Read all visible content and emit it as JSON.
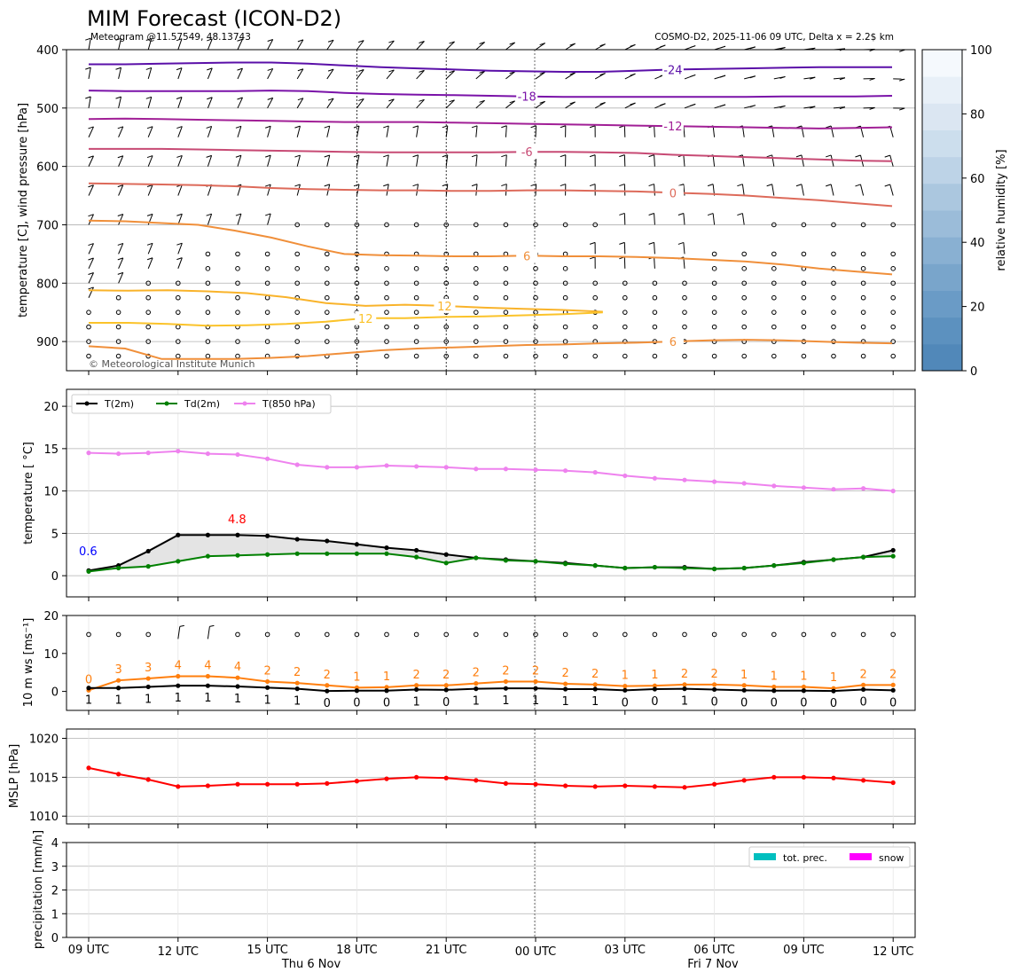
{
  "header": {
    "title": "MIM Forecast (ICON-D2)",
    "subtitle_left": "Meteogram @11.57549, 48.13743",
    "subtitle_right": "COSMO-D2, 2025-11-06 09 UTC, Delta x = 2.2$ km",
    "copyright": "© Meteorological Institute Munich"
  },
  "time_axis": {
    "tick_labels": [
      "09 UTC",
      "12 UTC",
      "15 UTC",
      "18 UTC",
      "21 UTC",
      "00 UTC",
      "03 UTC",
      "06 UTC",
      "09 UTC",
      "12 UTC"
    ],
    "day_labels": [
      "Thu 6 Nov",
      "Fri 7 Nov"
    ]
  },
  "chart_data": [
    {
      "type": "contour",
      "id": "upper_air",
      "ylabel": "temperature [C], wind pressure [hPa]",
      "ylim": [
        950,
        400
      ],
      "yticks": [
        400,
        500,
        600,
        700,
        800,
        900
      ],
      "grid": true,
      "temperature_isotherms": [
        {
          "label": "-24",
          "color": "#5a0fa8",
          "pressure": [
            425,
            425,
            424,
            423,
            422,
            422,
            424,
            427,
            430,
            432,
            434,
            436,
            437,
            438,
            438,
            436,
            434,
            433,
            432,
            431,
            430,
            430,
            430
          ]
        },
        {
          "label": "-18",
          "color": "#7a12a8",
          "pressure": [
            470,
            471,
            471,
            471,
            471,
            470,
            471,
            474,
            476,
            477,
            478,
            479,
            480,
            481,
            481,
            481,
            481,
            481,
            481,
            480,
            480,
            480,
            479
          ]
        },
        {
          "label": "-12",
          "color": "#a11f96",
          "pressure": [
            519,
            518,
            519,
            520,
            521,
            522,
            523,
            524,
            524,
            524,
            525,
            526,
            527,
            528,
            529,
            530,
            531,
            532,
            533,
            534,
            535,
            534,
            533
          ]
        },
        {
          "label": "-6",
          "color": "#c74a74",
          "pressure": [
            570,
            570,
            570,
            571,
            572,
            573,
            574,
            575,
            576,
            576,
            576,
            576,
            575,
            575,
            576,
            577,
            580,
            582,
            584,
            586,
            588,
            590,
            591
          ]
        },
        {
          "label": "0",
          "color": "#dd6a5a",
          "pressure": [
            629,
            630,
            631,
            632,
            634,
            637,
            639,
            640,
            641,
            641,
            642,
            642,
            641,
            641,
            642,
            643,
            645,
            647,
            650,
            654,
            658,
            663,
            668
          ]
        },
        {
          "label": "6",
          "color": "#f08f3a",
          "pressure": [
            693,
            694,
            697,
            700,
            710,
            722,
            737,
            750,
            752,
            753,
            754,
            754,
            753,
            754,
            754,
            755,
            757,
            760,
            763,
            768,
            775,
            780,
            785
          ]
        },
        {
          "label": "12",
          "color": "#f9b32a",
          "pressure": [
            812,
            813,
            812,
            814,
            817,
            824,
            834,
            839,
            837,
            839,
            842,
            844,
            846,
            849
          ]
        },
        {
          "label": "12",
          "color": "#fbc32a",
          "pressure": [
            868,
            868,
            870,
            873,
            872,
            870,
            866,
            860,
            860,
            858,
            857,
            855,
            853,
            850
          ]
        },
        {
          "label": "6",
          "color": "#f08f3a",
          "pressure": [
            908,
            912,
            930,
            930,
            930,
            928,
            925,
            920,
            915,
            912,
            910,
            908,
            906,
            905,
            903,
            902,
            900,
            898,
            897,
            898,
            900,
            902,
            903
          ]
        }
      ],
      "wind_pressure_levels": [
        925,
        900,
        875,
        850,
        825,
        800,
        775,
        750,
        700,
        650,
        600,
        550,
        500,
        450,
        400
      ]
    },
    {
      "type": "line",
      "id": "surface_temperature",
      "ylabel": "temperature [$^\\circ$C]",
      "ylim": [
        -2.5,
        22
      ],
      "yticks": [
        0,
        5,
        10,
        15,
        20
      ],
      "grid": true,
      "legend_placement": "top-left",
      "series": [
        {
          "name": "T(2m)",
          "color": "#000000",
          "values": [
            0.6,
            1.2,
            2.9,
            4.8,
            4.8,
            4.8,
            4.7,
            4.3,
            4.1,
            3.7,
            3.3,
            3.0,
            2.5,
            2.1,
            1.9,
            1.7,
            1.5,
            1.2,
            0.9,
            1.0,
            1.0,
            0.8,
            0.9,
            1.2,
            1.6,
            1.9,
            2.2,
            3.0
          ]
        },
        {
          "name": "Td(2m)",
          "color": "#008000",
          "values": [
            0.5,
            0.9,
            1.1,
            1.7,
            2.3,
            2.4,
            2.5,
            2.6,
            2.6,
            2.6,
            2.6,
            2.2,
            1.5,
            2.1,
            1.8,
            1.7,
            1.4,
            1.2,
            0.9,
            1.0,
            0.9,
            0.8,
            0.9,
            1.2,
            1.5,
            1.9,
            2.2,
            2.3
          ]
        },
        {
          "name": "T(850 hPa)",
          "color": "#ee82ee",
          "values": [
            14.5,
            14.4,
            14.5,
            14.7,
            14.4,
            14.3,
            13.8,
            13.1,
            12.8,
            12.8,
            13.0,
            12.9,
            12.8,
            12.6,
            12.6,
            12.5,
            12.4,
            12.2,
            11.8,
            11.5,
            11.3,
            11.1,
            10.9,
            10.6,
            10.4,
            10.2,
            10.3,
            10.0
          ]
        }
      ],
      "annotations": [
        {
          "text": "0.6",
          "color": "#0000ff"
        },
        {
          "text": "4.8",
          "color": "#ff0000"
        }
      ]
    },
    {
      "type": "line",
      "id": "wind_speed",
      "ylabel": "10 m ws [ms$^{-1}$]",
      "ylim": [
        -5,
        20
      ],
      "yticks": [
        0,
        10,
        20
      ],
      "series": [
        {
          "name": "gust",
          "color": "#ff7f0e",
          "values": [
            0,
            3,
            3,
            4,
            4,
            4,
            2,
            2,
            2,
            1,
            1,
            2,
            2,
            2,
            2,
            2,
            2,
            2,
            1,
            1,
            2,
            2,
            1,
            1,
            1,
            1,
            2,
            2
          ],
          "plotted": [
            0.3,
            2.9,
            3.4,
            4.0,
            4.0,
            3.6,
            2.6,
            2.2,
            1.6,
            1.0,
            1.1,
            1.6,
            1.6,
            2.1,
            2.6,
            2.6,
            2.0,
            1.8,
            1.4,
            1.5,
            1.8,
            1.8,
            1.6,
            1.2,
            1.2,
            0.8,
            1.7,
            1.7
          ]
        },
        {
          "name": "mean",
          "color": "#000000",
          "values": [
            1,
            1,
            1,
            1,
            1,
            1,
            1,
            1,
            0,
            0,
            0,
            1,
            0,
            1,
            1,
            1,
            1,
            1,
            0,
            0,
            1,
            0,
            0,
            0,
            0,
            0,
            0,
            0
          ],
          "plotted": [
            0.9,
            0.9,
            1.2,
            1.5,
            1.5,
            1.3,
            1.0,
            0.7,
            0.1,
            0.2,
            0.2,
            0.5,
            0.4,
            0.7,
            0.8,
            0.8,
            0.6,
            0.6,
            0.3,
            0.6,
            0.7,
            0.5,
            0.3,
            0.2,
            0.2,
            0.1,
            0.5,
            0.3
          ]
        }
      ]
    },
    {
      "type": "line",
      "id": "mslp",
      "ylabel": "MSLP [hPa]",
      "ylim": [
        1009,
        1021.2
      ],
      "yticks": [
        1010,
        1015,
        1020
      ],
      "grid": true,
      "series": [
        {
          "name": "MSLP",
          "color": "#ff0000",
          "values": [
            1016.2,
            1015.4,
            1014.7,
            1013.8,
            1013.9,
            1014.1,
            1014.1,
            1014.1,
            1014.2,
            1014.5,
            1014.8,
            1015.0,
            1014.9,
            1014.6,
            1014.2,
            1014.1,
            1013.9,
            1013.8,
            1013.9,
            1013.8,
            1013.7,
            1014.1,
            1014.6,
            1015.0,
            1015.0,
            1014.9,
            1014.6,
            1014.3
          ]
        }
      ]
    },
    {
      "type": "bar",
      "id": "precipitation",
      "ylabel": "precipitation [mm/h]",
      "ylim": [
        0,
        4
      ],
      "yticks": [
        0,
        1,
        2,
        3,
        4
      ],
      "grid": true,
      "legend_placement": "top-right",
      "series": [
        {
          "name": "tot. prec.",
          "color": "#00bfbf",
          "values": [
            0,
            0,
            0,
            0,
            0,
            0,
            0,
            0,
            0,
            0,
            0,
            0,
            0,
            0,
            0,
            0,
            0,
            0,
            0,
            0,
            0,
            0,
            0,
            0,
            0,
            0,
            0,
            0
          ]
        },
        {
          "name": "snow",
          "color": "#ff00ff",
          "values": [
            0,
            0,
            0,
            0,
            0,
            0,
            0,
            0,
            0,
            0,
            0,
            0,
            0,
            0,
            0,
            0,
            0,
            0,
            0,
            0,
            0,
            0,
            0,
            0,
            0,
            0,
            0,
            0
          ]
        }
      ]
    }
  ],
  "colorbar": {
    "label": "relative humidity [%]",
    "ticks": [
      "0",
      "20",
      "40",
      "60",
      "80",
      "100"
    ],
    "colors": [
      "#5188b9",
      "#5c91bf",
      "#6a9bc6",
      "#79a5cb",
      "#89b0d2",
      "#9bbcd9",
      "#abc7df",
      "#bdd3e7",
      "#ccdeed",
      "#dbe6f2",
      "#e8f0f8",
      "#f5f9fd"
    ]
  }
}
